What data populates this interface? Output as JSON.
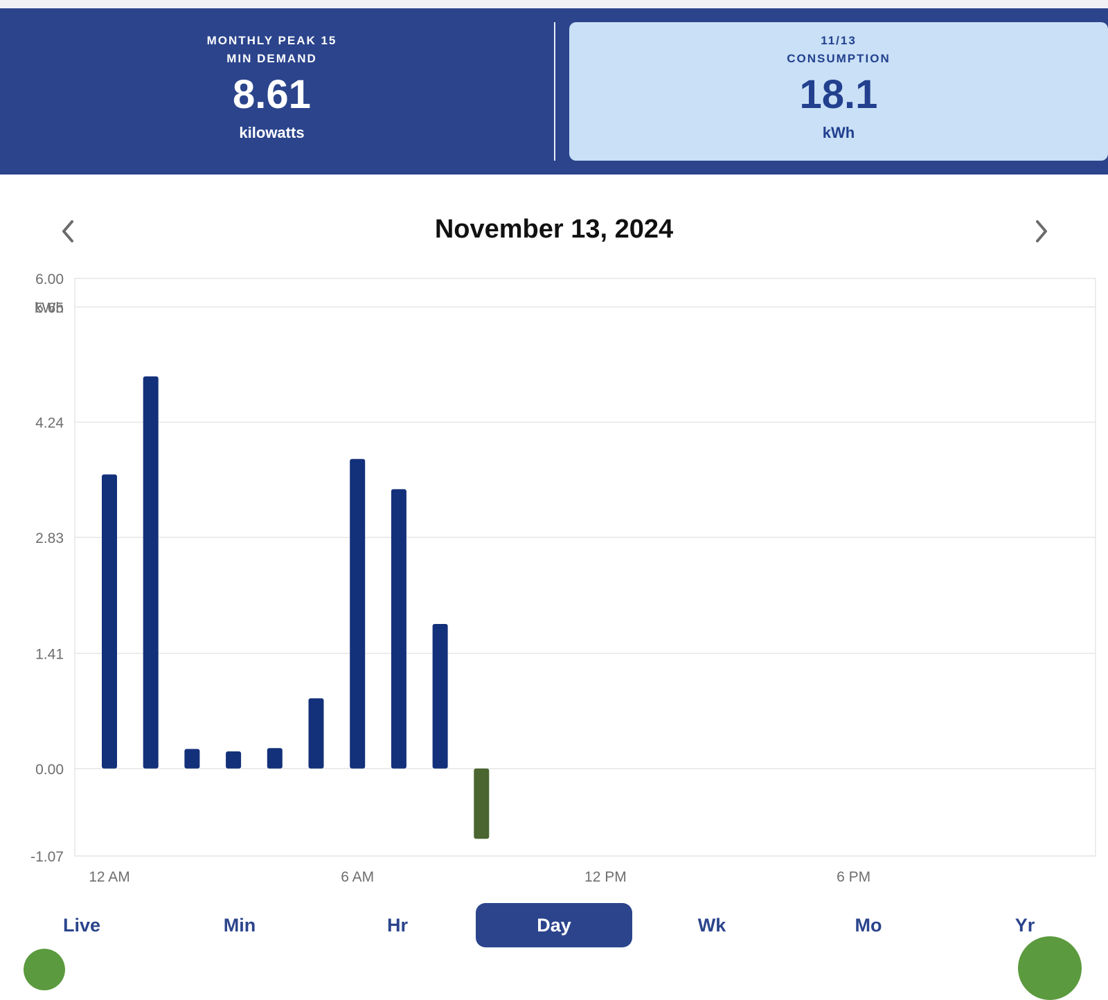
{
  "summary": {
    "left": {
      "caption_line1": "MONTHLY PEAK 15",
      "caption_line2": "MIN DEMAND",
      "value": "8.61",
      "unit": "kilowatts"
    },
    "right": {
      "caption_line1": "11/13",
      "caption_line2": "CONSUMPTION",
      "value": "18.1",
      "unit": "kWh"
    }
  },
  "date_nav": {
    "title": "November 13, 2024",
    "prev_icon": "chevron-left-icon",
    "next_icon": "chevron-right-icon"
  },
  "chart_data": {
    "type": "bar",
    "ylabel": "kWh",
    "ylim": [
      -1.07,
      6.0
    ],
    "y_ticks": [
      -1.07,
      0.0,
      1.41,
      2.83,
      4.24,
      5.65,
      6.0
    ],
    "y_tick_labels": [
      "-1.07",
      "0.00",
      "1.41",
      "2.83",
      "4.24",
      "5.65",
      "6.00"
    ],
    "x_tick_labels": [
      {
        "label": "12 AM",
        "hour": 0
      },
      {
        "label": "6 AM",
        "hour": 6
      },
      {
        "label": "12 PM",
        "hour": 12
      },
      {
        "label": "6 PM",
        "hour": 18
      }
    ],
    "grid": true,
    "series": [
      {
        "color": "#13307a",
        "points": [
          {
            "hour": 0,
            "value": 3.6
          },
          {
            "hour": 1,
            "value": 4.8
          },
          {
            "hour": 2,
            "value": 0.24
          },
          {
            "hour": 3,
            "value": 0.21
          },
          {
            "hour": 4,
            "value": 0.25
          },
          {
            "hour": 5,
            "value": 0.86
          },
          {
            "hour": 6,
            "value": 3.79
          },
          {
            "hour": 7,
            "value": 3.42
          },
          {
            "hour": 8,
            "value": 1.77
          }
        ]
      },
      {
        "color": "#4a6530",
        "points": [
          {
            "hour": 9,
            "value": -0.86
          }
        ]
      }
    ]
  },
  "tabs": [
    {
      "label": "Live",
      "active": false
    },
    {
      "label": "Min",
      "active": false
    },
    {
      "label": "Hr",
      "active": false
    },
    {
      "label": "Day",
      "active": true
    },
    {
      "label": "Wk",
      "active": false
    },
    {
      "label": "Mo",
      "active": false
    },
    {
      "label": "Yr",
      "active": false
    }
  ],
  "colors": {
    "header_bg": "#2b448c",
    "card_highlight_bg": "#c9e0f6",
    "accent": "#2b448c",
    "fab": "#5b9a3e"
  }
}
